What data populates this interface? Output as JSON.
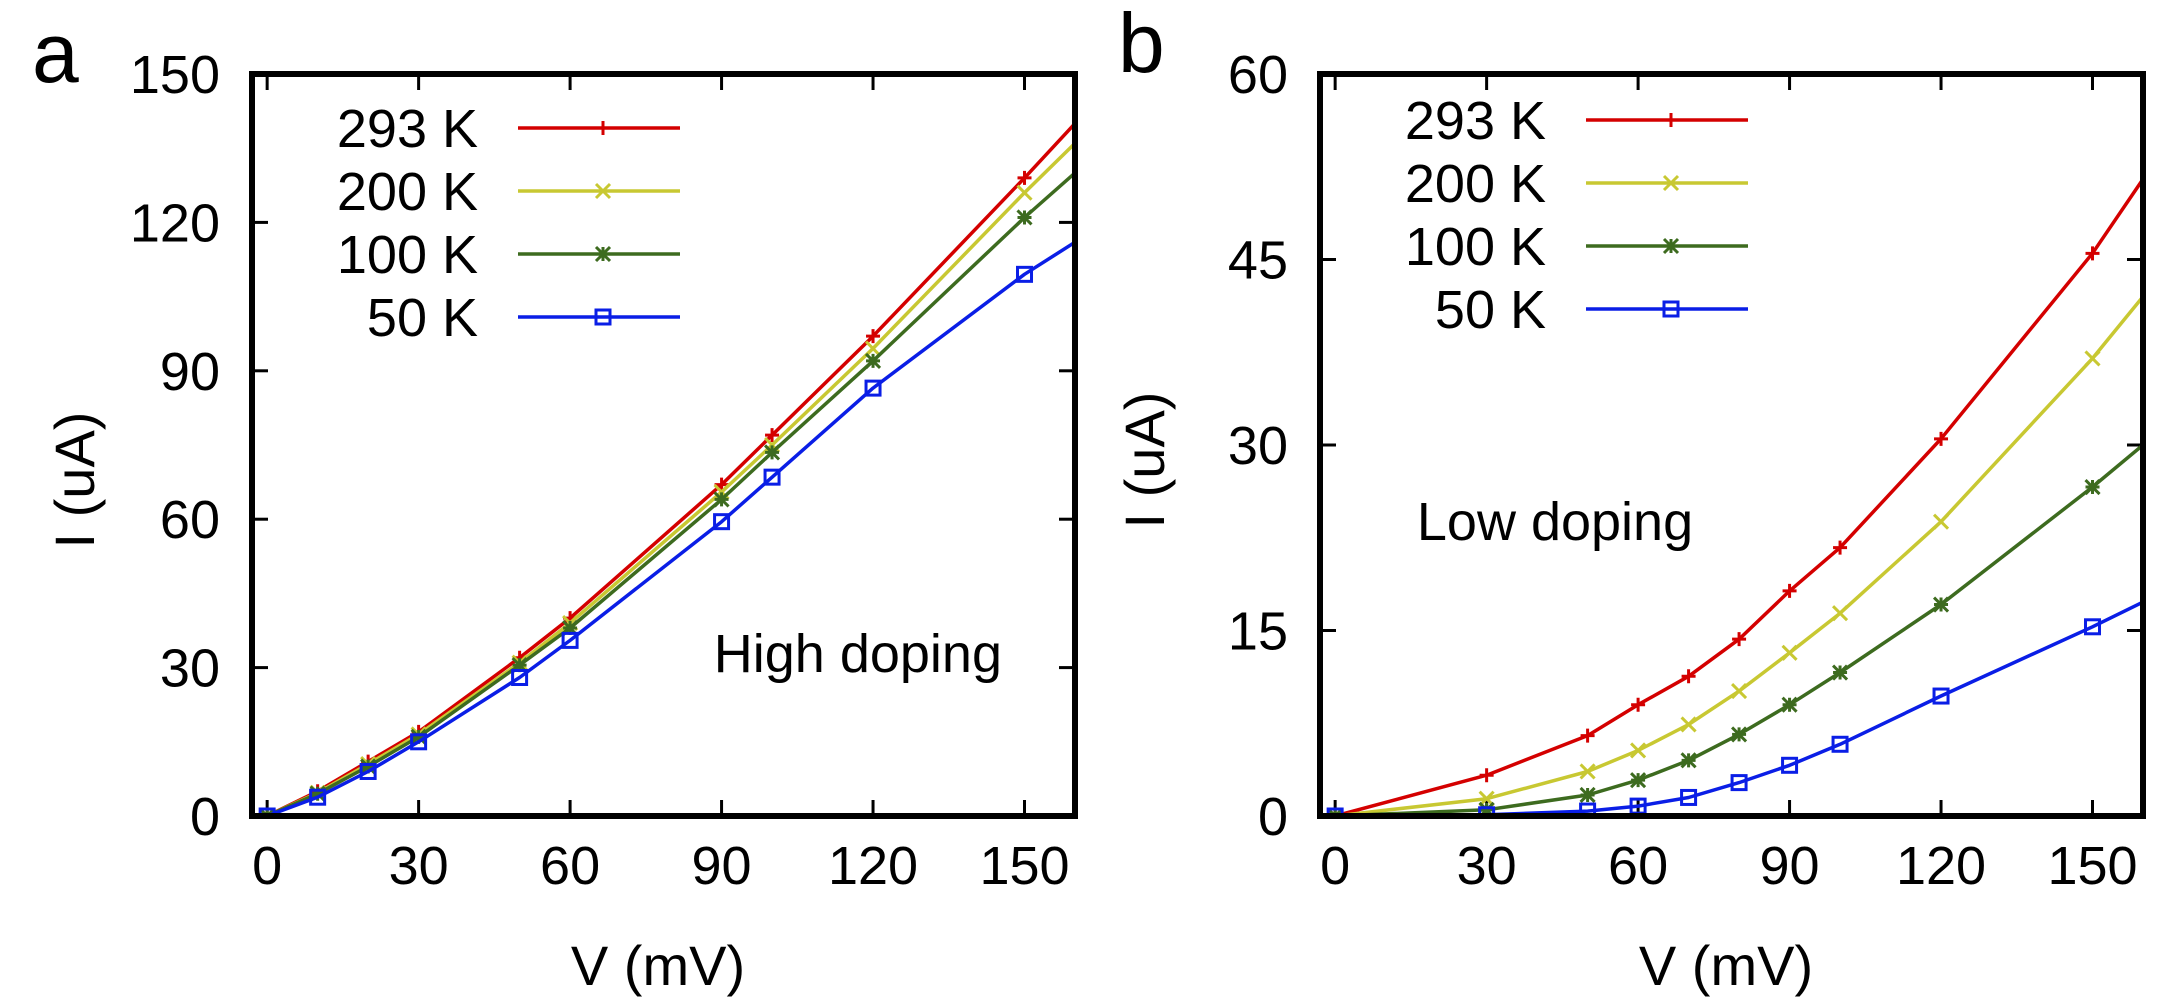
{
  "chart_data": [
    {
      "panel_label": "a",
      "type": "line",
      "xlabel": "V (mV)",
      "ylabel": "I (uA)",
      "xlim": [
        -3,
        160
      ],
      "ylim": [
        0,
        150
      ],
      "xticks": [
        0,
        30,
        60,
        90,
        120,
        150
      ],
      "yticks": [
        0,
        30,
        60,
        90,
        120,
        150
      ],
      "annotation": "High doping",
      "legend_position": "top-left",
      "grid": false,
      "series": [
        {
          "name": "293 K",
          "color": "#d40000",
          "marker": "plus",
          "x": [
            0,
            10,
            20,
            30,
            50,
            60,
            90,
            100,
            120,
            150,
            160
          ],
          "y": [
            0,
            5,
            11,
            17,
            32,
            40,
            67,
            77,
            97,
            129,
            140
          ]
        },
        {
          "name": "200 K",
          "color": "#c8c832",
          "marker": "cross",
          "x": [
            0,
            10,
            20,
            30,
            50,
            60,
            90,
            100,
            120,
            150,
            160
          ],
          "y": [
            0,
            4.7,
            10.5,
            16.5,
            31,
            39,
            65.5,
            75,
            94.5,
            126,
            136
          ]
        },
        {
          "name": "100 K",
          "color": "#3d6b1f",
          "marker": "star",
          "x": [
            0,
            10,
            20,
            30,
            50,
            60,
            90,
            100,
            120,
            150,
            160
          ],
          "y": [
            0,
            4.5,
            10,
            16,
            30.5,
            38,
            64,
            73.5,
            92,
            121,
            130
          ]
        },
        {
          "name": "50 K",
          "color": "#0a1ee6",
          "marker": "square",
          "x": [
            0,
            10,
            20,
            30,
            50,
            60,
            90,
            100,
            120,
            150,
            160
          ],
          "y": [
            0,
            3.8,
            9,
            15,
            28,
            35.5,
            59.5,
            68.5,
            86.5,
            109.5,
            116
          ]
        }
      ]
    },
    {
      "panel_label": "b",
      "type": "line",
      "xlabel": "V (mV)",
      "ylabel": "I (uA)",
      "xlim": [
        -3,
        160
      ],
      "ylim": [
        0,
        60
      ],
      "xticks": [
        0,
        30,
        60,
        90,
        120,
        150
      ],
      "yticks": [
        0,
        15,
        30,
        45,
        60
      ],
      "annotation": "Low doping",
      "legend_position": "top-left",
      "grid": false,
      "series": [
        {
          "name": "293 K",
          "color": "#d40000",
          "marker": "plus",
          "x": [
            0,
            30,
            50,
            60,
            70,
            80,
            90,
            100,
            120,
            150,
            160
          ],
          "y": [
            0,
            3.3,
            6.5,
            9,
            11.3,
            14.3,
            18.2,
            21.7,
            30.5,
            45.5,
            51.5
          ]
        },
        {
          "name": "200 K",
          "color": "#c8c832",
          "marker": "cross",
          "x": [
            0,
            30,
            50,
            60,
            70,
            80,
            90,
            100,
            120,
            150,
            160
          ],
          "y": [
            0,
            1.4,
            3.6,
            5.3,
            7.4,
            10.1,
            13.2,
            16.4,
            23.8,
            37,
            42
          ]
        },
        {
          "name": "100 K",
          "color": "#3d6b1f",
          "marker": "star",
          "x": [
            0,
            30,
            50,
            60,
            70,
            80,
            90,
            100,
            120,
            150,
            160
          ],
          "y": [
            0,
            0.5,
            1.7,
            2.9,
            4.5,
            6.6,
            9,
            11.6,
            17.1,
            26.6,
            30
          ]
        },
        {
          "name": "50 K",
          "color": "#0a1ee6",
          "marker": "square",
          "x": [
            0,
            30,
            50,
            60,
            70,
            80,
            90,
            100,
            120,
            150,
            160
          ],
          "y": [
            0,
            0.1,
            0.4,
            0.8,
            1.5,
            2.7,
            4.1,
            5.8,
            9.7,
            15.3,
            17.3
          ]
        }
      ]
    }
  ]
}
